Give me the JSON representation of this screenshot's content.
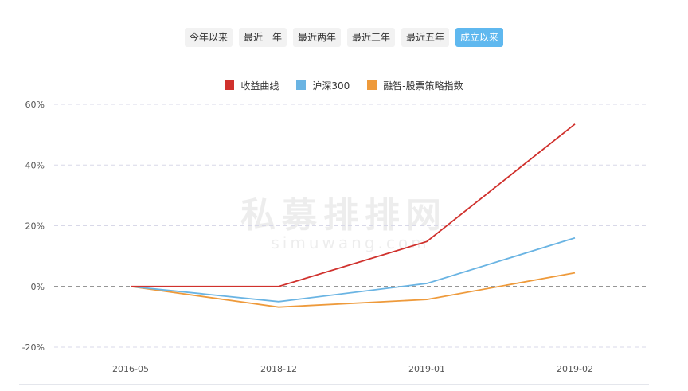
{
  "tabs": [
    {
      "label": "今年以来",
      "active": false
    },
    {
      "label": "最近一年",
      "active": false
    },
    {
      "label": "最近两年",
      "active": false
    },
    {
      "label": "最近三年",
      "active": false
    },
    {
      "label": "最近五年",
      "active": false
    },
    {
      "label": "成立以来",
      "active": true
    }
  ],
  "watermark": {
    "cn": "私募排排网",
    "en": "simuwang.com"
  },
  "colors": {
    "active_tab": "#5fb8ef",
    "grid": "#d8d8e8",
    "zero_line": "#888888"
  },
  "chart_data": {
    "type": "line",
    "categories": [
      "2016-05",
      "2018-12",
      "2019-01",
      "2019-02"
    ],
    "series": [
      {
        "name": "收益曲线",
        "color": "#d0312d",
        "values": [
          0,
          0,
          14.8,
          53.5
        ]
      },
      {
        "name": "沪深300",
        "color": "#6ab4e3",
        "values": [
          0,
          -5,
          1,
          16
        ]
      },
      {
        "name": "融智-股票策略指数",
        "color": "#ee9a3b",
        "values": [
          0,
          -6.8,
          -4.3,
          4.5
        ]
      }
    ],
    "ylim": [
      -20,
      60
    ],
    "yticks": [
      -20,
      0,
      20,
      40,
      60
    ],
    "ytick_labels": [
      "-20%",
      "0%",
      "20%",
      "40%",
      "60%"
    ],
    "grid": true,
    "legend_position": "top-center"
  }
}
